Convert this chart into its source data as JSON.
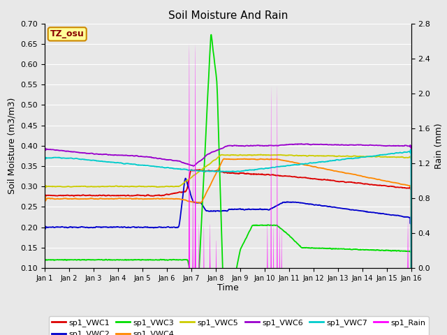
{
  "title": "Soil Moisture And Rain",
  "ylabel_left": "Soil Moisture (m3/m3)",
  "ylabel_right": "Rain (mm)",
  "xlabel": "Time",
  "site_label": "TZ_osu",
  "ylim_left": [
    0.1,
    0.7
  ],
  "ylim_right": [
    0.0,
    2.8
  ],
  "xtick_labels": [
    "Jan 1",
    "Jan 2",
    "Jan 3",
    "Jan 4",
    "Jan 5",
    "Jan 6",
    "Jan 7",
    "Jan 8",
    "Jan 9",
    "Jan 10",
    "Jan 11",
    "Jan 12",
    "Jan 13",
    "Jan 14",
    "Jan 15",
    "Jan 16"
  ],
  "colors": {
    "VWC1": "#dd0000",
    "VWC2": "#0000cc",
    "VWC3": "#00dd00",
    "VWC4": "#ff8800",
    "VWC5": "#cccc00",
    "VWC6": "#9900cc",
    "VWC7": "#00cccc",
    "Rain": "#ff00ff"
  },
  "bg_color": "#e8e8e8",
  "grid_color": "#ffffff",
  "fig_bg": "#e8e8e8"
}
